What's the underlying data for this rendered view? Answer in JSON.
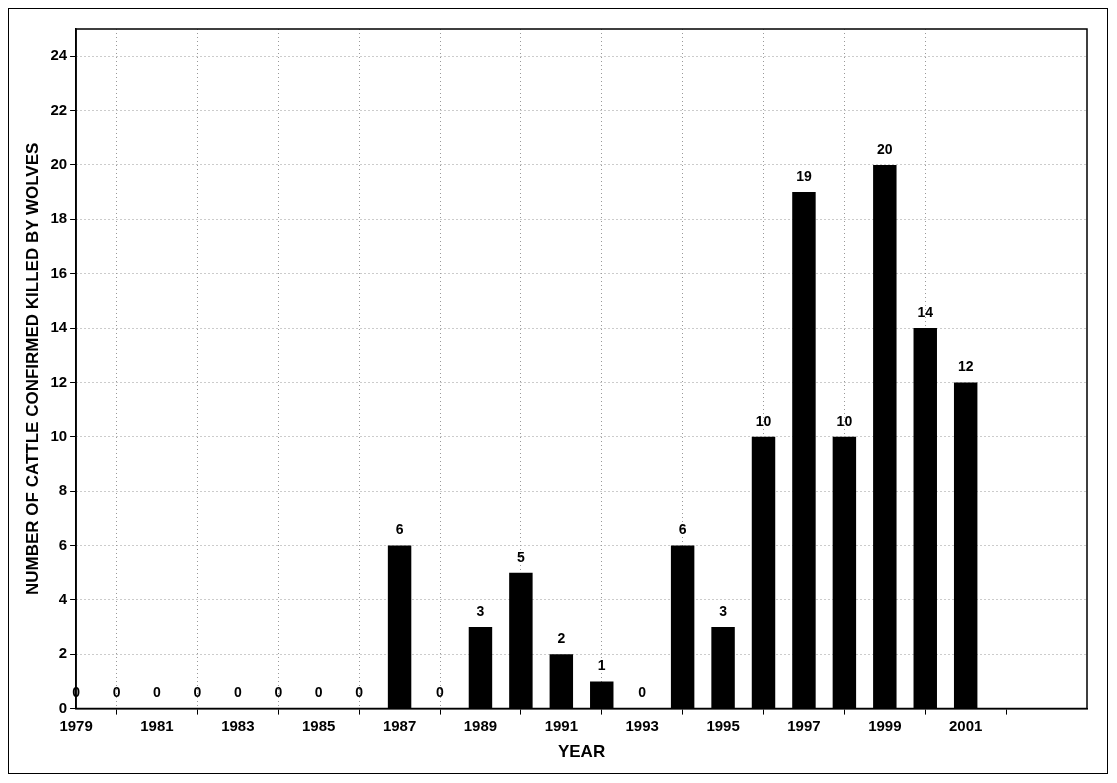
{
  "chart_data": {
    "type": "bar",
    "xlabel": "YEAR",
    "ylabel": "NUMBER OF CATTLE CONFIRMED KILLED BY WOLVES",
    "x": [
      1979,
      1980,
      1981,
      1982,
      1983,
      1984,
      1985,
      1986,
      1987,
      1988,
      1989,
      1990,
      1991,
      1992,
      1993,
      1994,
      1995,
      1996,
      1997,
      1998,
      1999,
      2000,
      2001
    ],
    "values": [
      0,
      0,
      0,
      0,
      0,
      0,
      0,
      0,
      6,
      0,
      3,
      5,
      2,
      1,
      0,
      6,
      3,
      10,
      19,
      10,
      20,
      14,
      12
    ],
    "color": "#000000",
    "xlim": [
      1979,
      2004
    ],
    "xticks": [
      1979,
      1981,
      1983,
      1985,
      1987,
      1989,
      1991,
      1993,
      1995,
      1997,
      1999,
      2001
    ],
    "ylim": [
      0,
      25
    ],
    "yticks": [
      0,
      2,
      4,
      6,
      8,
      10,
      12,
      14,
      16,
      18,
      20,
      22,
      24
    ],
    "grid": true,
    "line_style": "dotted",
    "data_labels": true,
    "legend": false
  }
}
